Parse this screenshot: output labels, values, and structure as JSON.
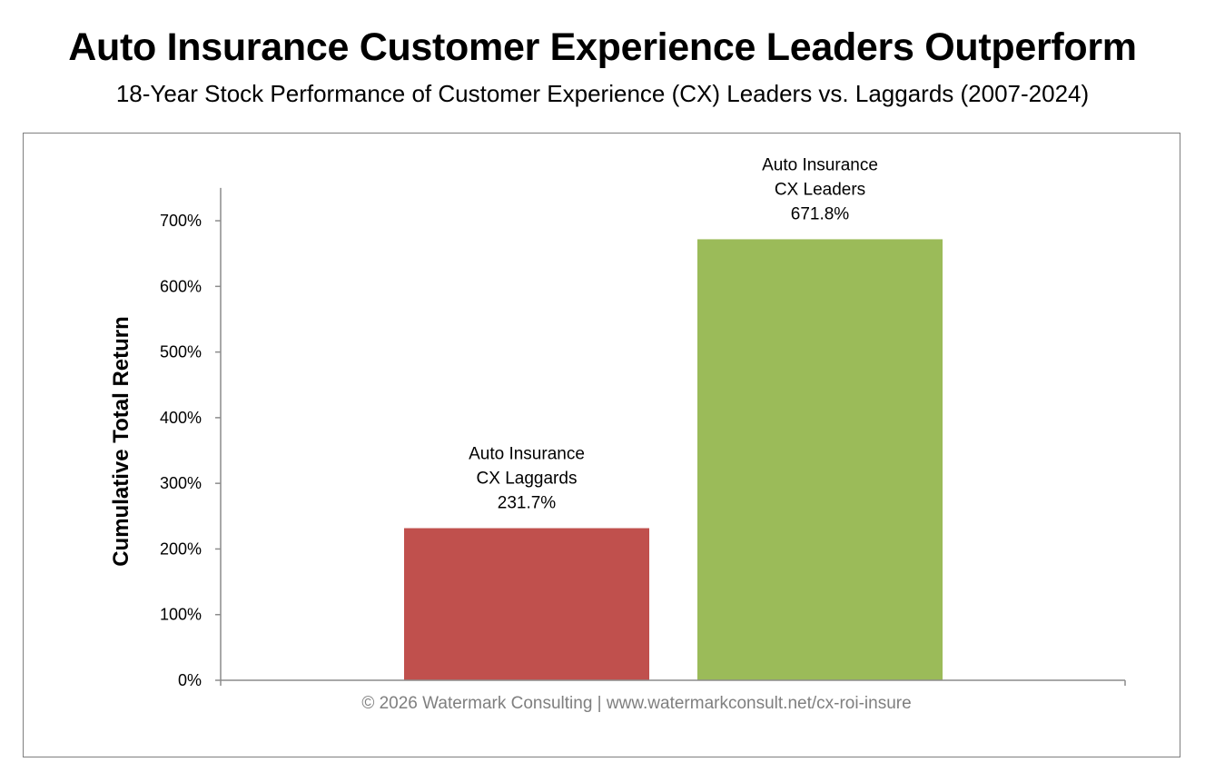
{
  "title": "Auto Insurance Customer Experience Leaders Outperform",
  "subtitle": "18-Year Stock Performance of Customer Experience (CX) Leaders vs. Laggards (2007-2024)",
  "footer": "© 2026 Watermark Consulting | www.watermarkconsult.net/cx-roi-insure",
  "chart_data": {
    "type": "bar",
    "title": "Auto Insurance Customer Experience Leaders Outperform",
    "subtitle": "18-Year Stock Performance of Customer Experience (CX) Leaders vs. Laggards (2007-2024)",
    "xlabel": "",
    "ylabel": "Cumulative Total Return",
    "ylim": [
      0,
      750
    ],
    "yticks": [
      0,
      100,
      200,
      300,
      400,
      500,
      600,
      700
    ],
    "ytick_labels": [
      "0%",
      "100%",
      "200%",
      "300%",
      "400%",
      "500%",
      "600%",
      "700%"
    ],
    "grid": false,
    "legend": "none",
    "categories": [
      "Auto Insurance CX Laggards",
      "Auto Insurance CX Leaders"
    ],
    "values": [
      231.7,
      671.8
    ],
    "bars": [
      {
        "label_lines": [
          "Auto Insurance",
          "CX Laggards"
        ],
        "value": 231.7,
        "value_label": "231.7%",
        "color": "#c0504d"
      },
      {
        "label_lines": [
          "Auto Insurance",
          "CX Leaders"
        ],
        "value": 671.8,
        "value_label": "671.8%",
        "color": "#9bbb59"
      }
    ]
  }
}
